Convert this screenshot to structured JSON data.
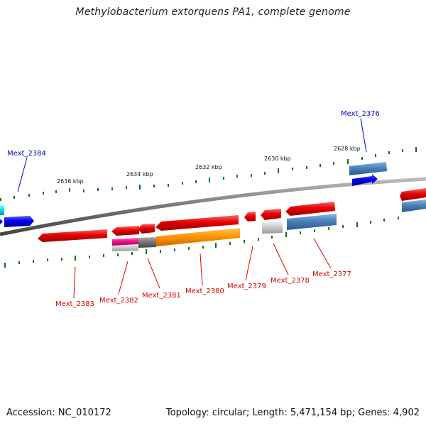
{
  "title": "Methylobacterium extorquens PA1, complete genome",
  "accession": "Accession: NC_010172",
  "summary": "Topology: circular; Length: 5,471,154 bp; Genes: 4,902",
  "kbp_labels": [
    "2636 kbp",
    "2634 kbp",
    "2632 kbp",
    "2630 kbp",
    "2628 kbp"
  ],
  "gene_labels": {
    "mext_2384": "Mext_2384",
    "mext_2383": "Mext_2383",
    "mext_2382": "Mext_2382",
    "mext_2381": "Mext_2381",
    "mext_2380": "Mext_2380",
    "mext_2379": "Mext_2379",
    "mext_2378": "Mext_2378",
    "mext_2377": "Mext_2377",
    "mext_2376": "Mext_2376"
  },
  "colors": {
    "forward_gene": "#e60000",
    "reverse_gene_blue": "#0000ee",
    "steel_blue": "#4a80b8",
    "orange": "#ff9900",
    "magenta": "#ee1188",
    "gray": "#777777",
    "light_gray": "#cccccc",
    "cyan": "#00e5e5",
    "tick_green": "#007700",
    "backbone": "#808080"
  }
}
